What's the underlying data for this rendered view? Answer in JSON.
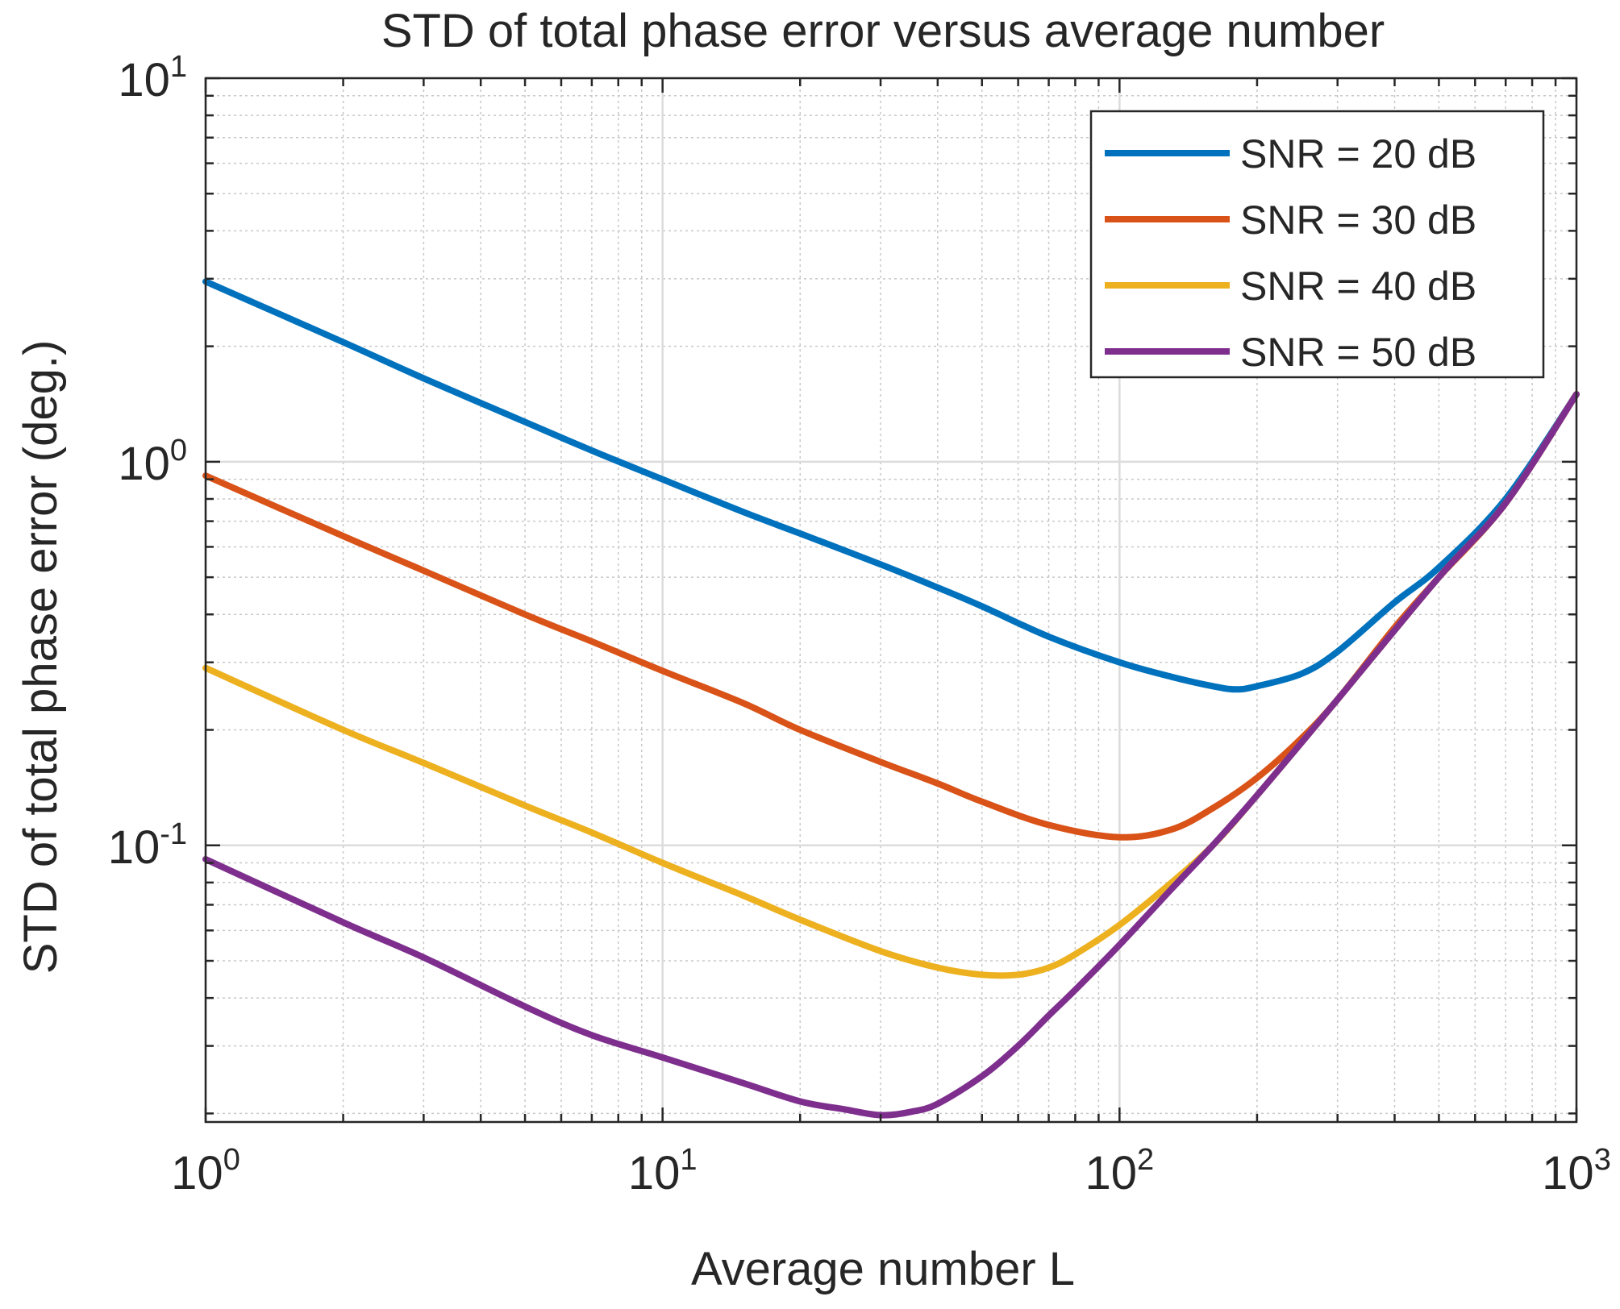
{
  "chart_data": {
    "type": "line",
    "title": "STD of total phase error versus average number",
    "xlabel": "Average number L",
    "ylabel": "STD of total phase error (deg.)",
    "xscale": "log",
    "yscale": "log",
    "xlim": [
      1,
      1000
    ],
    "ylim": [
      0.019,
      10
    ],
    "grid": true,
    "legend_position": "top-right",
    "x_ticks": [
      {
        "base": "10",
        "exp": "0",
        "value": 1
      },
      {
        "base": "10",
        "exp": "1",
        "value": 10
      },
      {
        "base": "10",
        "exp": "2",
        "value": 100
      },
      {
        "base": "10",
        "exp": "3",
        "value": 1000
      }
    ],
    "y_ticks": [
      {
        "base": "10",
        "exp": "-1",
        "value": 0.1
      },
      {
        "base": "10",
        "exp": "0",
        "value": 1
      },
      {
        "base": "10",
        "exp": "1",
        "value": 10
      }
    ],
    "series": [
      {
        "name": "SNR = 20 dB",
        "color": "#0072BD",
        "x": [
          1,
          2,
          3,
          5,
          7,
          10,
          15,
          20,
          30,
          40,
          50,
          70,
          100,
          130,
          160,
          180,
          200,
          250,
          300,
          400,
          500,
          700,
          1000
        ],
        "y": [
          2.95,
          2.05,
          1.65,
          1.27,
          1.07,
          0.9,
          0.74,
          0.65,
          0.54,
          0.47,
          0.42,
          0.35,
          0.3,
          0.275,
          0.26,
          0.255,
          0.26,
          0.28,
          0.32,
          0.43,
          0.53,
          0.8,
          1.5
        ]
      },
      {
        "name": "SNR = 30 dB",
        "color": "#D95319",
        "x": [
          1,
          2,
          3,
          5,
          7,
          10,
          15,
          20,
          30,
          40,
          50,
          70,
          100,
          130,
          160,
          200,
          250,
          300,
          400,
          500,
          700,
          1000
        ],
        "y": [
          0.92,
          0.64,
          0.52,
          0.4,
          0.34,
          0.285,
          0.235,
          0.2,
          0.165,
          0.145,
          0.13,
          0.113,
          0.105,
          0.11,
          0.125,
          0.15,
          0.19,
          0.24,
          0.37,
          0.5,
          0.78,
          1.5
        ]
      },
      {
        "name": "SNR = 40 dB",
        "color": "#EDB120",
        "x": [
          1,
          2,
          3,
          5,
          7,
          10,
          15,
          20,
          30,
          40,
          50,
          60,
          70,
          80,
          100,
          130,
          160,
          200,
          300,
          500,
          700,
          1000
        ],
        "y": [
          0.29,
          0.2,
          0.164,
          0.127,
          0.108,
          0.09,
          0.074,
          0.064,
          0.053,
          0.048,
          0.046,
          0.046,
          0.048,
          0.052,
          0.062,
          0.08,
          0.1,
          0.135,
          0.24,
          0.5,
          0.78,
          1.5
        ]
      },
      {
        "name": "SNR = 50 dB",
        "color": "#7E2F8E",
        "x": [
          1,
          2,
          3,
          5,
          7,
          10,
          15,
          20,
          25,
          30,
          35,
          40,
          50,
          60,
          70,
          80,
          100,
          130,
          160,
          200,
          300,
          500,
          700,
          1000
        ],
        "y": [
          0.092,
          0.063,
          0.051,
          0.038,
          0.032,
          0.028,
          0.024,
          0.0215,
          0.0205,
          0.0198,
          0.0202,
          0.0212,
          0.025,
          0.03,
          0.036,
          0.042,
          0.055,
          0.077,
          0.1,
          0.135,
          0.24,
          0.5,
          0.78,
          1.5
        ]
      }
    ]
  }
}
